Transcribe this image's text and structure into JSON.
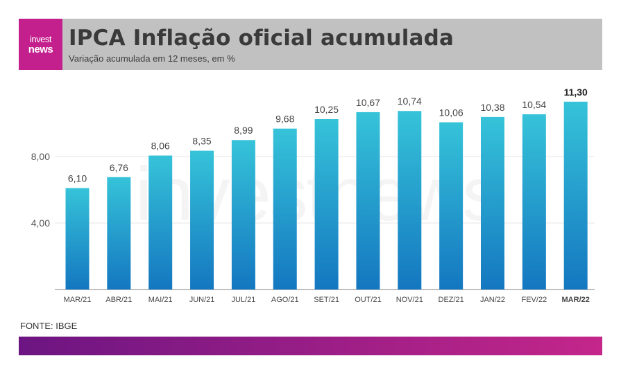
{
  "header": {
    "logo_line1": "invest",
    "logo_line2": "news",
    "title": "IPCA Inflação oficial acumulada",
    "subtitle": "Variação acumulada em 12 meses, em %"
  },
  "watermark": "investnews",
  "source": "FONTE: IBGE",
  "colors": {
    "bar_top": "#36c3d9",
    "bar_bottom": "#1477c0",
    "logo_bg": "#c3208e",
    "header_bg": "#c1c1c1",
    "footer_start": "#6c1582",
    "footer_end": "#c4268a"
  },
  "chart_data": {
    "type": "bar",
    "categories": [
      "MAR/21",
      "ABR/21",
      "MAI/21",
      "JUN/21",
      "JUL/21",
      "AGO/21",
      "SET/21",
      "OUT/21",
      "NOV/21",
      "DEZ/21",
      "JAN/22",
      "FEV/22",
      "MAR/22"
    ],
    "values": [
      6.1,
      6.76,
      8.06,
      8.35,
      8.99,
      9.68,
      10.25,
      10.67,
      10.74,
      10.06,
      10.38,
      10.54,
      11.3
    ],
    "value_labels": [
      "6,10",
      "6,76",
      "8,06",
      "8,35",
      "8,99",
      "9,68",
      "10,25",
      "10,67",
      "10,74",
      "10,06",
      "10,38",
      "10,54",
      "11,30"
    ],
    "highlight_last": true,
    "yticks": [
      4,
      8
    ],
    "ytick_labels": [
      "4,00",
      "8,00"
    ],
    "ylim": [
      0,
      12
    ],
    "grid": true,
    "title": "IPCA Inflação oficial acumulada",
    "xlabel": "",
    "ylabel": ""
  }
}
